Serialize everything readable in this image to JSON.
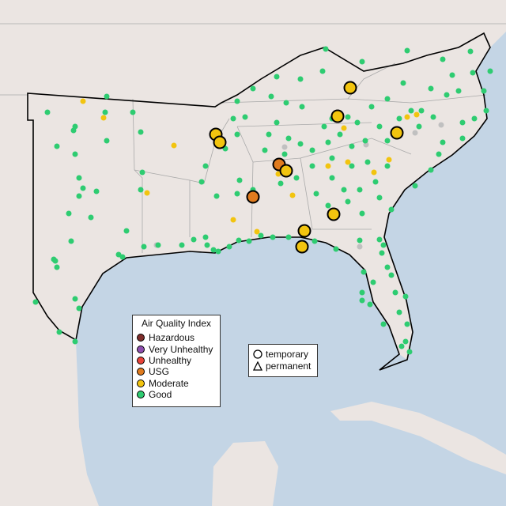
{
  "colors": {
    "land": "#ebe5e2",
    "water": "#c4d5e5",
    "state_border": "#a9a9a9",
    "region_border": "#000000"
  },
  "aqi_legend": {
    "title": "Air Quality Index",
    "items": [
      {
        "label": "Hazardous",
        "color": "#7e2d2b"
      },
      {
        "label": "Very Unhealthy",
        "color": "#8e4fb0"
      },
      {
        "label": "Unhealthy",
        "color": "#e8433a"
      },
      {
        "label": "USG",
        "color": "#e07b1e"
      },
      {
        "label": "Moderate",
        "color": "#f2c40f"
      },
      {
        "label": "Good",
        "color": "#2ecc71"
      }
    ]
  },
  "type_legend": {
    "items": [
      {
        "label": "temporary",
        "icon": "circle-icon"
      },
      {
        "label": "permanent",
        "icon": "triangle-icon"
      }
    ]
  },
  "no_data_color": "#c0c0c0"
}
